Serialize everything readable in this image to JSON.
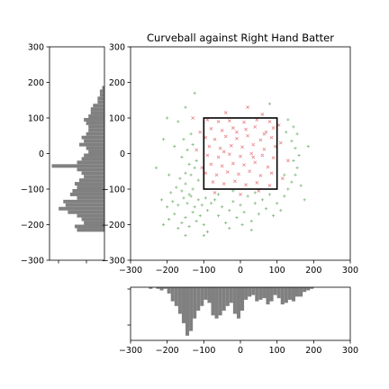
{
  "chart_data": [
    {
      "type": "scatter",
      "panel": "main",
      "title": "Curveball against Right Hand Batter",
      "xlim": [
        -300,
        300
      ],
      "ylim": [
        -300,
        300
      ],
      "x_ticks": [
        -300,
        -200,
        -100,
        0,
        100,
        200,
        300
      ],
      "y_ticks": [
        -300,
        -200,
        -100,
        0,
        100,
        200,
        300
      ],
      "strike_zone": {
        "x": [
          -100,
          100
        ],
        "y": [
          -100,
          100
        ]
      },
      "series": [
        {
          "marker": "x",
          "color": "#e8858a",
          "points": [
            [
              -90,
              95
            ],
            [
              -60,
              90
            ],
            [
              -30,
              92
            ],
            [
              10,
              88
            ],
            [
              45,
              95
            ],
            [
              80,
              90
            ],
            [
              -80,
              70
            ],
            [
              -50,
              65
            ],
            [
              -20,
              72
            ],
            [
              15,
              68
            ],
            [
              40,
              75
            ],
            [
              70,
              60
            ],
            [
              90,
              72
            ],
            [
              -95,
              45
            ],
            [
              -70,
              40
            ],
            [
              -40,
              48
            ],
            [
              -10,
              42
            ],
            [
              20,
              50
            ],
            [
              55,
              38
            ],
            [
              85,
              45
            ],
            [
              -85,
              20
            ],
            [
              -55,
              15
            ],
            [
              -25,
              22
            ],
            [
              5,
              18
            ],
            [
              35,
              25
            ],
            [
              65,
              12
            ],
            [
              95,
              20
            ],
            [
              -90,
              -5
            ],
            [
              -60,
              -10
            ],
            [
              -30,
              -2
            ],
            [
              0,
              -8
            ],
            [
              30,
              0
            ],
            [
              60,
              -5
            ],
            [
              90,
              -12
            ],
            [
              -80,
              -30
            ],
            [
              -50,
              -35
            ],
            [
              -20,
              -28
            ],
            [
              10,
              -32
            ],
            [
              40,
              -25
            ],
            [
              75,
              -38
            ],
            [
              -95,
              -55
            ],
            [
              -65,
              -60
            ],
            [
              -35,
              -52
            ],
            [
              -5,
              -58
            ],
            [
              25,
              -50
            ],
            [
              55,
              -62
            ],
            [
              85,
              -55
            ],
            [
              -75,
              -80
            ],
            [
              -45,
              -85
            ],
            [
              -15,
              -78
            ],
            [
              15,
              -88
            ],
            [
              45,
              -82
            ],
            [
              80,
              -90
            ],
            [
              -110,
              60
            ],
            [
              110,
              30
            ],
            [
              -105,
              -40
            ],
            [
              115,
              -70
            ],
            [
              -120,
              10
            ],
            [
              105,
              80
            ],
            [
              60,
              110
            ],
            [
              -40,
              115
            ],
            [
              20,
              130
            ],
            [
              -70,
              -110
            ],
            [
              50,
              -105
            ],
            [
              0,
              -115
            ],
            [
              -130,
              100
            ],
            [
              130,
              -20
            ],
            [
              -10,
              60
            ],
            [
              35,
              -10
            ],
            [
              -45,
              5
            ],
            [
              65,
              55
            ]
          ]
        },
        {
          "marker": "+",
          "color": "#7fb87a",
          "points": [
            [
              -210,
              -200
            ],
            [
              -195,
              -185
            ],
            [
              -180,
              -170
            ],
            [
              -170,
              -210
            ],
            [
              -160,
              -195
            ],
            [
              -150,
              -180
            ],
            [
              -140,
              -205
            ],
            [
              -130,
              -165
            ],
            [
              -120,
              -190
            ],
            [
              -110,
              -175
            ],
            [
              -100,
              -200
            ],
            [
              -90,
              -160
            ],
            [
              -200,
              -150
            ],
            [
              -185,
              -135
            ],
            [
              -170,
              -145
            ],
            [
              -155,
              -125
            ],
            [
              -145,
              -140
            ],
            [
              -135,
              -120
            ],
            [
              -125,
              -150
            ],
            [
              -115,
              -130
            ],
            [
              -105,
              -145
            ],
            [
              -95,
              -125
            ],
            [
              -80,
              -140
            ],
            [
              -70,
              -130
            ],
            [
              -190,
              -110
            ],
            [
              -175,
              -95
            ],
            [
              -160,
              -105
            ],
            [
              -150,
              -85
            ],
            [
              -140,
              -115
            ],
            [
              -130,
              -100
            ],
            [
              -165,
              -70
            ],
            [
              -150,
              -55
            ],
            [
              -135,
              -60
            ],
            [
              -125,
              -40
            ],
            [
              -115,
              -75
            ],
            [
              -140,
              -30
            ],
            [
              -160,
              -10
            ],
            [
              -145,
              10
            ],
            [
              -130,
              25
            ],
            [
              -120,
              -20
            ],
            [
              -155,
              40
            ],
            [
              -135,
              55
            ],
            [
              -60,
              -175
            ],
            [
              -50,
              -150
            ],
            [
              -40,
              -195
            ],
            [
              -30,
              -160
            ],
            [
              -20,
              -135
            ],
            [
              -10,
              -180
            ],
            [
              0,
              -145
            ],
            [
              10,
              -165
            ],
            [
              20,
              -120
            ],
            [
              30,
              -190
            ],
            [
              40,
              -140
            ],
            [
              50,
              -170
            ],
            [
              60,
              -130
            ],
            [
              70,
              -155
            ],
            [
              80,
              -115
            ],
            [
              90,
              -175
            ],
            [
              100,
              -140
            ],
            [
              110,
              -160
            ],
            [
              120,
              -120
            ],
            [
              130,
              -100
            ],
            [
              140,
              -80
            ],
            [
              150,
              -60
            ],
            [
              155,
              -40
            ],
            [
              145,
              -20
            ],
            [
              160,
              -5
            ],
            [
              150,
              15
            ],
            [
              140,
              35
            ],
            [
              155,
              55
            ],
            [
              145,
              75
            ],
            [
              130,
              95
            ],
            [
              165,
              -90
            ],
            [
              175,
              -130
            ],
            [
              120,
              -60
            ],
            [
              125,
              60
            ],
            [
              -200,
              100
            ],
            [
              -210,
              40
            ],
            [
              -230,
              -40
            ],
            [
              -215,
              -130
            ],
            [
              -195,
              -60
            ],
            [
              -180,
              20
            ],
            [
              -170,
              90
            ],
            [
              -150,
              130
            ],
            [
              -125,
              170
            ],
            [
              80,
              140
            ],
            [
              -90,
              -220
            ],
            [
              -30,
              -210
            ],
            [
              30,
              -215
            ],
            [
              185,
              20
            ],
            [
              -60,
              -115
            ],
            [
              -20,
              -105
            ],
            [
              40,
              -110
            ],
            [
              -150,
              -230
            ],
            [
              -100,
              -230
            ],
            [
              5,
              -200
            ]
          ]
        }
      ]
    },
    {
      "type": "bar",
      "panel": "bottom-histogram",
      "orientation": "vertical",
      "color": "#808080",
      "xlim": [
        -300,
        300
      ],
      "x_ticks": [
        -300,
        -200,
        -100,
        0,
        100,
        200,
        300
      ],
      "bin_width": 10,
      "bins": [
        [
          -250,
          1
        ],
        [
          -240,
          0
        ],
        [
          -230,
          1
        ],
        [
          -220,
          2
        ],
        [
          -210,
          1
        ],
        [
          -200,
          4
        ],
        [
          -190,
          9
        ],
        [
          -180,
          12
        ],
        [
          -170,
          17
        ],
        [
          -160,
          23
        ],
        [
          -150,
          31
        ],
        [
          -140,
          28
        ],
        [
          -130,
          20
        ],
        [
          -120,
          15
        ],
        [
          -110,
          12
        ],
        [
          -100,
          8
        ],
        [
          -90,
          10
        ],
        [
          -80,
          18
        ],
        [
          -70,
          20
        ],
        [
          -60,
          18
        ],
        [
          -50,
          15
        ],
        [
          -40,
          12
        ],
        [
          -30,
          10
        ],
        [
          -20,
          17
        ],
        [
          -10,
          20
        ],
        [
          0,
          15
        ],
        [
          10,
          8
        ],
        [
          20,
          6
        ],
        [
          30,
          5
        ],
        [
          40,
          9
        ],
        [
          50,
          8
        ],
        [
          60,
          7
        ],
        [
          70,
          11
        ],
        [
          80,
          9
        ],
        [
          90,
          5
        ],
        [
          100,
          7
        ],
        [
          110,
          11
        ],
        [
          120,
          10
        ],
        [
          130,
          8
        ],
        [
          140,
          9
        ],
        [
          150,
          6
        ],
        [
          160,
          6
        ],
        [
          170,
          3
        ],
        [
          180,
          2
        ],
        [
          190,
          1
        ]
      ]
    },
    {
      "type": "bar",
      "panel": "left-histogram",
      "orientation": "horizontal",
      "color": "#808080",
      "ylim": [
        -300,
        300
      ],
      "y_ticks": [
        -300,
        -200,
        -100,
        0,
        100,
        200,
        300
      ],
      "bin_width": 10,
      "bins": [
        [
          180,
          1
        ],
        [
          170,
          2
        ],
        [
          160,
          2
        ],
        [
          150,
          3
        ],
        [
          140,
          3
        ],
        [
          130,
          5
        ],
        [
          120,
          6
        ],
        [
          110,
          6
        ],
        [
          100,
          7
        ],
        [
          90,
          9
        ],
        [
          80,
          8
        ],
        [
          70,
          7
        ],
        [
          60,
          7
        ],
        [
          50,
          8
        ],
        [
          40,
          10
        ],
        [
          30,
          9
        ],
        [
          20,
          11
        ],
        [
          10,
          8
        ],
        [
          0,
          7
        ],
        [
          -10,
          9
        ],
        [
          -20,
          10
        ],
        [
          -30,
          12
        ],
        [
          -40,
          23
        ],
        [
          -50,
          12
        ],
        [
          -60,
          10
        ],
        [
          -70,
          9
        ],
        [
          -80,
          11
        ],
        [
          -90,
          13
        ],
        [
          -100,
          12
        ],
        [
          -110,
          14
        ],
        [
          -120,
          15
        ],
        [
          -130,
          12
        ],
        [
          -140,
          18
        ],
        [
          -150,
          17
        ],
        [
          -160,
          20
        ],
        [
          -170,
          16
        ],
        [
          -180,
          12
        ],
        [
          -190,
          10
        ],
        [
          -200,
          9
        ],
        [
          -210,
          13
        ],
        [
          -220,
          12
        ]
      ]
    }
  ]
}
